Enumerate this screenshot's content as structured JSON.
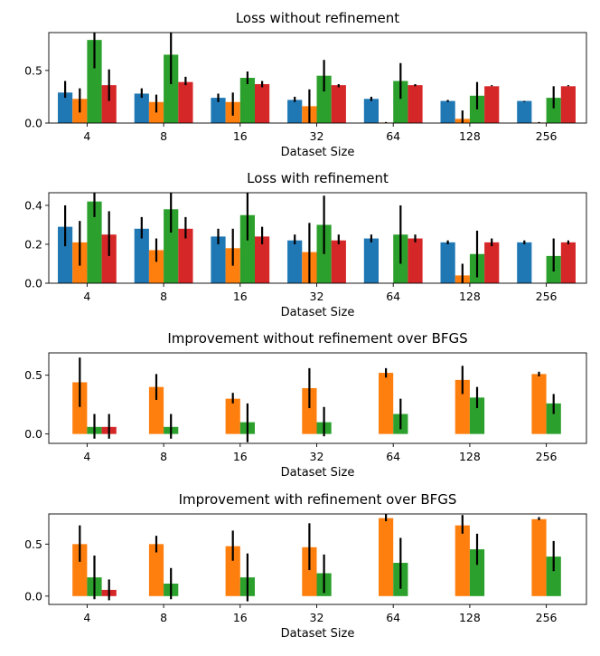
{
  "chart_data": [
    {
      "type": "bar",
      "title": "Loss without refinement",
      "xlabel": "Dataset Size",
      "ylabel": "",
      "categories": [
        "4",
        "8",
        "16",
        "32",
        "64",
        "128",
        "256"
      ],
      "ylim": [
        0,
        0.86
      ],
      "yticks": [
        0.0,
        0.5
      ],
      "ytick_labels": [
        "0.0",
        "0.5"
      ],
      "series": [
        {
          "color": "#1f77b4",
          "values": [
            0.29,
            0.28,
            0.24,
            0.22,
            0.23,
            0.21,
            0.21
          ],
          "err_low": [
            0.24,
            0.24,
            0.2,
            0.2,
            0.21,
            0.2,
            0.2
          ],
          "err_high": [
            0.4,
            0.33,
            0.28,
            0.25,
            0.25,
            0.22,
            0.21
          ]
        },
        {
          "color": "#ff7f0e",
          "values": [
            0.23,
            0.2,
            0.2,
            0.16,
            0.005,
            0.04,
            0.005
          ],
          "err_low": [
            0.1,
            0.1,
            0.07,
            0.0,
            0.0,
            0.0,
            0.0
          ],
          "err_high": [
            0.33,
            0.27,
            0.29,
            0.32,
            0.01,
            0.12,
            0.01
          ]
        },
        {
          "color": "#2ca02c",
          "values": [
            0.79,
            0.65,
            0.43,
            0.45,
            0.4,
            0.26,
            0.24
          ],
          "err_low": [
            0.52,
            0.37,
            0.37,
            0.3,
            0.23,
            0.13,
            0.14
          ],
          "err_high": [
            0.88,
            0.88,
            0.49,
            0.6,
            0.57,
            0.39,
            0.35
          ]
        },
        {
          "color": "#d62728",
          "values": [
            0.36,
            0.39,
            0.37,
            0.36,
            0.36,
            0.35,
            0.35
          ],
          "err_low": [
            0.21,
            0.36,
            0.34,
            0.34,
            0.35,
            0.35,
            0.35
          ],
          "err_high": [
            0.51,
            0.44,
            0.4,
            0.37,
            0.37,
            0.36,
            0.36
          ]
        }
      ]
    },
    {
      "type": "bar",
      "title": "Loss with refinement",
      "xlabel": "Dataset Size",
      "ylabel": "",
      "categories": [
        "4",
        "8",
        "16",
        "32",
        "64",
        "128",
        "256"
      ],
      "ylim": [
        0,
        0.465
      ],
      "yticks": [
        0.0,
        0.2,
        0.4
      ],
      "ytick_labels": [
        "0.0",
        "0.2",
        "0.4"
      ],
      "series": [
        {
          "color": "#1f77b4",
          "values": [
            0.29,
            0.28,
            0.24,
            0.22,
            0.23,
            0.21,
            0.21
          ],
          "err_low": [
            0.19,
            0.23,
            0.2,
            0.2,
            0.21,
            0.2,
            0.2
          ],
          "err_high": [
            0.4,
            0.34,
            0.28,
            0.25,
            0.25,
            0.22,
            0.22
          ]
        },
        {
          "color": "#ff7f0e",
          "values": [
            0.21,
            0.17,
            0.18,
            0.16,
            0.0,
            0.04,
            0.0
          ],
          "err_low": [
            0.09,
            0.11,
            0.09,
            0.0,
            0.0,
            0.0,
            0.0
          ],
          "err_high": [
            0.32,
            0.23,
            0.28,
            0.31,
            0.0,
            0.1,
            0.0
          ]
        },
        {
          "color": "#2ca02c",
          "values": [
            0.42,
            0.38,
            0.35,
            0.3,
            0.25,
            0.15,
            0.14
          ],
          "err_low": [
            0.34,
            0.26,
            0.22,
            0.15,
            0.1,
            0.03,
            0.06
          ],
          "err_high": [
            0.48,
            0.48,
            0.48,
            0.45,
            0.4,
            0.27,
            0.23
          ]
        },
        {
          "color": "#d62728",
          "values": [
            0.25,
            0.28,
            0.24,
            0.22,
            0.23,
            0.21,
            0.21
          ],
          "err_low": [
            0.14,
            0.23,
            0.2,
            0.2,
            0.21,
            0.19,
            0.2
          ],
          "err_high": [
            0.37,
            0.34,
            0.29,
            0.25,
            0.25,
            0.23,
            0.22
          ]
        }
      ]
    },
    {
      "type": "bar",
      "title": "Improvement without refinement over BFGS",
      "xlabel": "Dataset Size",
      "ylabel": "",
      "categories": [
        "4",
        "8",
        "16",
        "32",
        "64",
        "128",
        "256"
      ],
      "ylim": [
        -0.08,
        0.69
      ],
      "yticks": [
        0.0,
        0.5
      ],
      "ytick_labels": [
        "0.0",
        "0.5"
      ],
      "series": [
        {
          "color": "#1f77b4",
          "values": [
            0,
            0,
            0,
            0,
            0,
            0,
            0
          ],
          "err_low": [
            0,
            0,
            0,
            0,
            0,
            0,
            0
          ],
          "err_high": [
            0,
            0,
            0,
            0,
            0,
            0,
            0
          ]
        },
        {
          "color": "#ff7f0e",
          "values": [
            0.44,
            0.4,
            0.3,
            0.39,
            0.52,
            0.46,
            0.51
          ],
          "err_low": [
            0.23,
            0.29,
            0.26,
            0.22,
            0.48,
            0.34,
            0.49
          ],
          "err_high": [
            0.65,
            0.51,
            0.35,
            0.56,
            0.56,
            0.58,
            0.53
          ]
        },
        {
          "color": "#2ca02c",
          "values": [
            0.06,
            0.06,
            0.1,
            0.1,
            0.17,
            0.31,
            0.26
          ],
          "err_low": [
            -0.04,
            -0.04,
            -0.07,
            -0.02,
            0.04,
            0.22,
            0.17
          ],
          "err_high": [
            0.17,
            0.17,
            0.26,
            0.23,
            0.3,
            0.4,
            0.34
          ]
        },
        {
          "color": "#d62728",
          "values": [
            0.06,
            0,
            0,
            0,
            0,
            0,
            0
          ],
          "err_low": [
            -0.04,
            0,
            0,
            0,
            0,
            0,
            0
          ],
          "err_high": [
            0.17,
            0,
            0,
            0,
            0,
            0,
            0
          ]
        }
      ]
    },
    {
      "type": "bar",
      "title": "Improvement with refinement over BFGS",
      "xlabel": "Dataset Size",
      "ylabel": "",
      "categories": [
        "4",
        "8",
        "16",
        "32",
        "64",
        "128",
        "256"
      ],
      "ylim": [
        -0.08,
        0.79
      ],
      "yticks": [
        0.0,
        0.5
      ],
      "ytick_labels": [
        "0.0",
        "0.5"
      ],
      "series": [
        {
          "color": "#1f77b4",
          "values": [
            0,
            0,
            0,
            0,
            0,
            0,
            0
          ],
          "err_low": [
            0,
            0,
            0,
            0,
            0,
            0,
            0
          ],
          "err_high": [
            0,
            0,
            0,
            0,
            0,
            0,
            0
          ]
        },
        {
          "color": "#ff7f0e",
          "values": [
            0.5,
            0.5,
            0.48,
            0.47,
            0.75,
            0.68,
            0.74
          ],
          "err_low": [
            0.33,
            0.42,
            0.34,
            0.25,
            0.72,
            0.6,
            0.73
          ],
          "err_high": [
            0.68,
            0.58,
            0.63,
            0.7,
            0.79,
            0.78,
            0.76
          ]
        },
        {
          "color": "#2ca02c",
          "values": [
            0.18,
            0.12,
            0.18,
            0.22,
            0.32,
            0.45,
            0.38
          ],
          "err_low": [
            -0.03,
            -0.03,
            -0.05,
            0.03,
            0.07,
            0.3,
            0.24
          ],
          "err_high": [
            0.39,
            0.27,
            0.41,
            0.4,
            0.56,
            0.6,
            0.53
          ]
        },
        {
          "color": "#d62728",
          "values": [
            0.06,
            0,
            0,
            0,
            0,
            0,
            0
          ],
          "err_low": [
            -0.04,
            0,
            0,
            0,
            0,
            0,
            0
          ],
          "err_high": [
            0.16,
            0,
            0,
            0,
            0,
            0,
            0
          ]
        }
      ]
    }
  ]
}
